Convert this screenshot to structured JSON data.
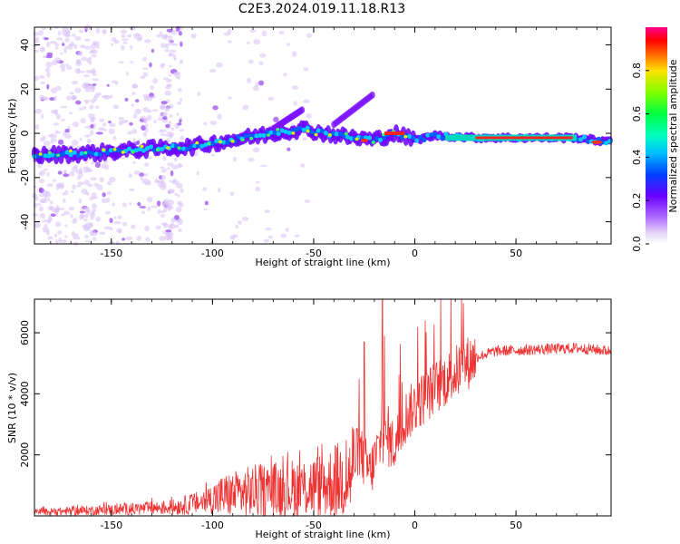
{
  "title": "C2E3.2024.019.11.18.R13",
  "chart_data": [
    {
      "type": "heatmap",
      "name": "spectrogram",
      "xlabel": "Height of straight line (km)",
      "ylabel": "Frequency (Hz)",
      "xlim": [
        -188,
        97
      ],
      "ylim": [
        -50,
        48
      ],
      "xticks": [
        -150,
        -100,
        -50,
        0,
        50
      ],
      "yticks": [
        -40,
        -20,
        0,
        20,
        40
      ],
      "colorbar": {
        "label": "Normalized spectral amplitude",
        "range": [
          0.0,
          1.0
        ],
        "ticks": [
          0.0,
          0.2,
          0.4,
          0.6,
          0.8
        ],
        "tick_labels": [
          "0.0",
          "0.2",
          "0.4",
          "0.6",
          "0.8"
        ]
      },
      "ridge": {
        "x": [
          -188,
          -160,
          -130,
          -110,
          -90,
          -70,
          -55,
          -45,
          -30,
          -20,
          -10,
          0,
          10,
          30,
          60,
          80,
          97
        ],
        "y": [
          -10,
          -9,
          -7,
          -6,
          -3,
          0,
          2,
          0,
          -2,
          -3,
          0,
          -3,
          -1,
          -2,
          -2,
          -2,
          -4
        ]
      },
      "colors": {
        "low": "#e6d6f8",
        "mid": "#7f00ff",
        "high": "#ff0000",
        "top": "#ff0080"
      }
    },
    {
      "type": "line",
      "name": "snr",
      "xlabel": "Height of straight line (km)",
      "ylabel": "SNR (10 * v/v)",
      "xlim": [
        -188,
        97
      ],
      "ylim": [
        0,
        7100
      ],
      "xticks": [
        -150,
        -100,
        -50,
        0,
        50
      ],
      "yticks": [
        2000,
        4000,
        6000
      ],
      "line_color": "#ee3333",
      "envelope": {
        "x": [
          -188,
          -150,
          -120,
          -105,
          -95,
          -80,
          -60,
          -45,
          -32,
          -28,
          -22,
          -16,
          -10,
          -5,
          0,
          10,
          20,
          30,
          40,
          60,
          80,
          97
        ],
        "y": [
          120,
          200,
          280,
          450,
          650,
          800,
          900,
          1000,
          1300,
          2200,
          1400,
          2600,
          2300,
          3200,
          3600,
          4200,
          4700,
          5200,
          5400,
          5450,
          5500,
          5400
        ]
      },
      "spikes": [
        {
          "x": -25,
          "y": 5700
        },
        {
          "x": -16,
          "y": 7100
        },
        {
          "x": -15,
          "y": 5900
        },
        {
          "x": -13,
          "y": 3600
        }
      ]
    }
  ]
}
